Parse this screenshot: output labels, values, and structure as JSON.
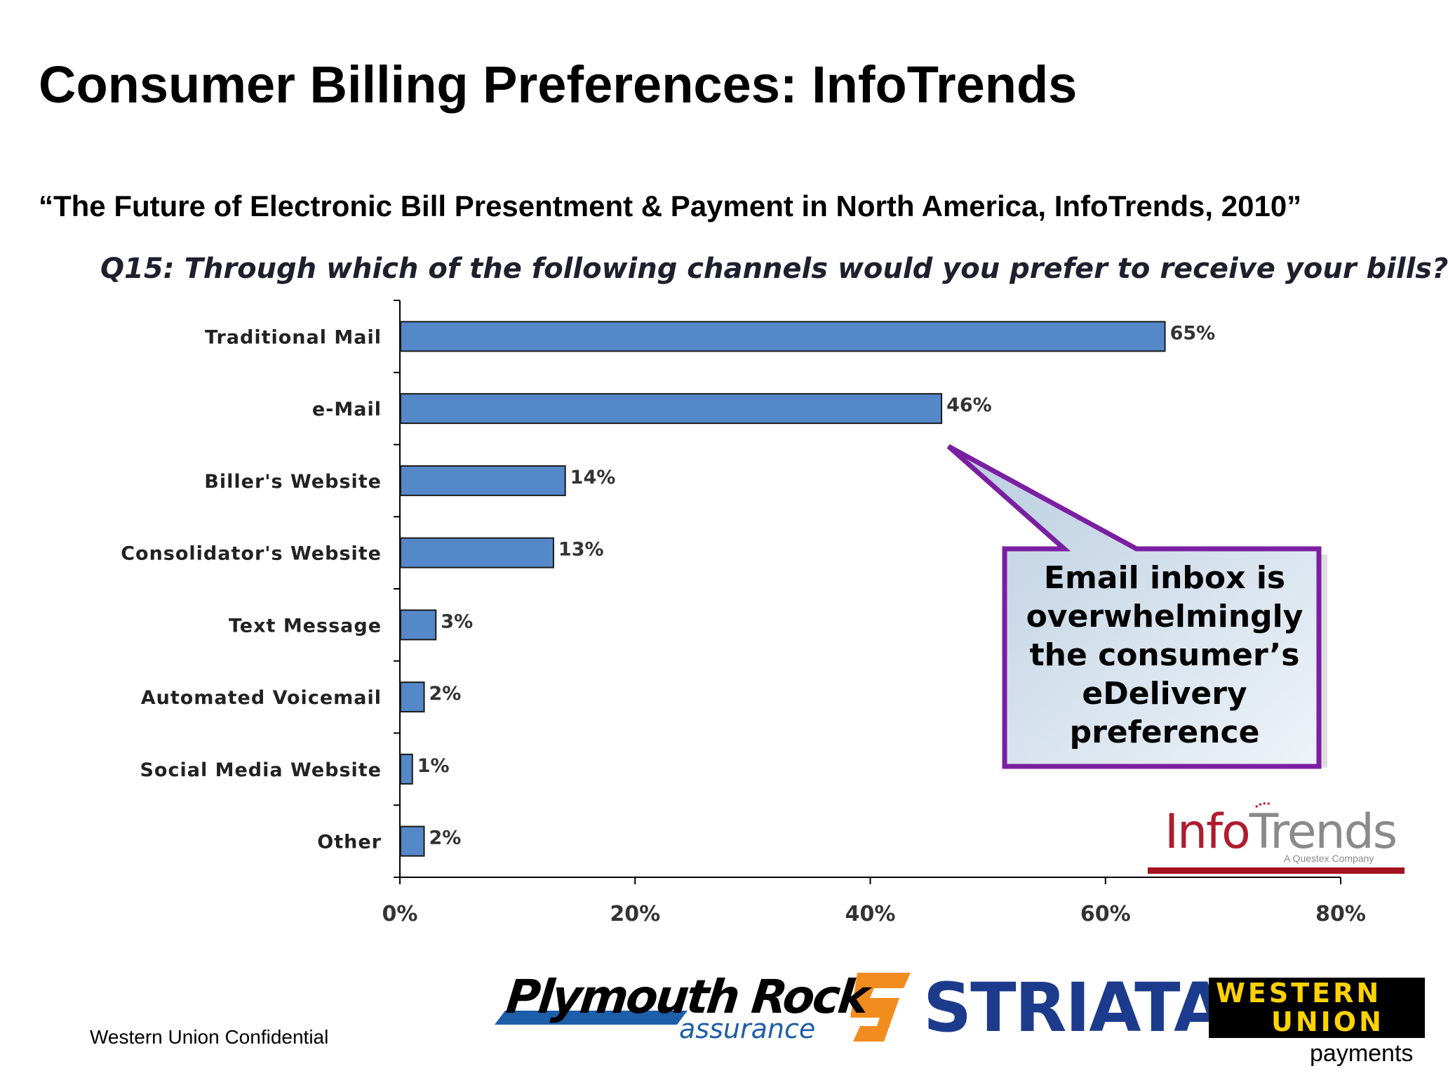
{
  "slide": {
    "title": "Consumer Billing Preferences: InfoTrends",
    "subtitle": "“The Future of Electronic Bill Presentment & Payment in North America, InfoTrends, 2010”",
    "footer": "Western Union Confidential"
  },
  "chart_data": {
    "type": "bar",
    "orientation": "horizontal",
    "title": "Q15: Through which of the following channels would you prefer to receive your bills?",
    "categories": [
      "Traditional Mail",
      "e-Mail",
      "Biller's Website",
      "Consolidator's Website",
      "Text Message",
      "Automated Voicemail",
      "Social Media Website",
      "Other"
    ],
    "values": [
      65,
      46,
      14,
      13,
      3,
      2,
      1,
      2
    ],
    "data_labels": [
      "65%",
      "46%",
      "14%",
      "13%",
      "3%",
      "2%",
      "1%",
      "2%"
    ],
    "xlim": [
      0,
      80
    ],
    "ticks": [
      0,
      20,
      40,
      60,
      80
    ],
    "tick_labels": [
      "0%",
      "20%",
      "40%",
      "60%",
      "80%"
    ],
    "bar_color": "#5588c8",
    "grid": false,
    "annotation": {
      "text_lines": [
        "Email inbox is",
        "overwhelmingly",
        "the consumer’s",
        "eDelivery",
        "preference"
      ],
      "points_to": "e-Mail",
      "border_color": "#7b1fa2"
    }
  },
  "logos": {
    "infotrends": {
      "part1": "Info",
      "part2": "Trends",
      "tagline": "A Questex Company"
    },
    "plymouth_rock": {
      "main": "Plymouth Rock",
      "sub": "assurance"
    },
    "striata": {
      "text": "STRIATA"
    },
    "western_union": {
      "line1": "WESTERN",
      "line2": "UNION",
      "sub": "payments"
    }
  }
}
